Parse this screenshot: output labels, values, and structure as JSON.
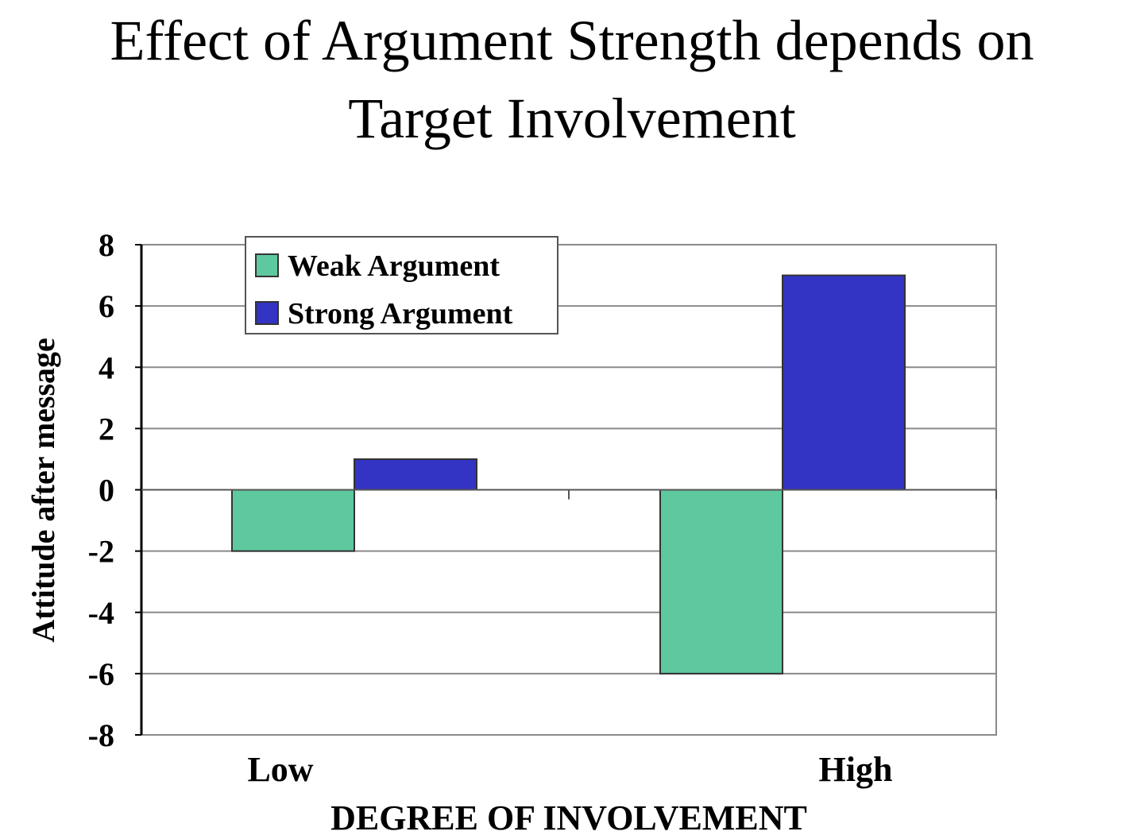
{
  "chart_data": {
    "type": "bar",
    "title": "Effect of Argument Strength depends on Target Involvement",
    "title_lines": [
      "Effect of Argument Strength depends on",
      "Target Involvement"
    ],
    "categories": [
      "Low",
      "High"
    ],
    "series": [
      {
        "name": "Weak Argument",
        "values": [
          -2,
          -6
        ],
        "color": "#5ec99e"
      },
      {
        "name": "Strong Argument",
        "values": [
          1,
          7
        ],
        "color": "#3333c4"
      }
    ],
    "xlabel": "DEGREE OF INVOLVEMENT",
    "ylabel": "Attitude after message",
    "ylim": [
      -8,
      8
    ],
    "yticks": [
      "8",
      "6",
      "4",
      "2",
      "0",
      "-2",
      "-4",
      "-6",
      "-8"
    ],
    "grid": true,
    "legend_position": "top-left"
  }
}
